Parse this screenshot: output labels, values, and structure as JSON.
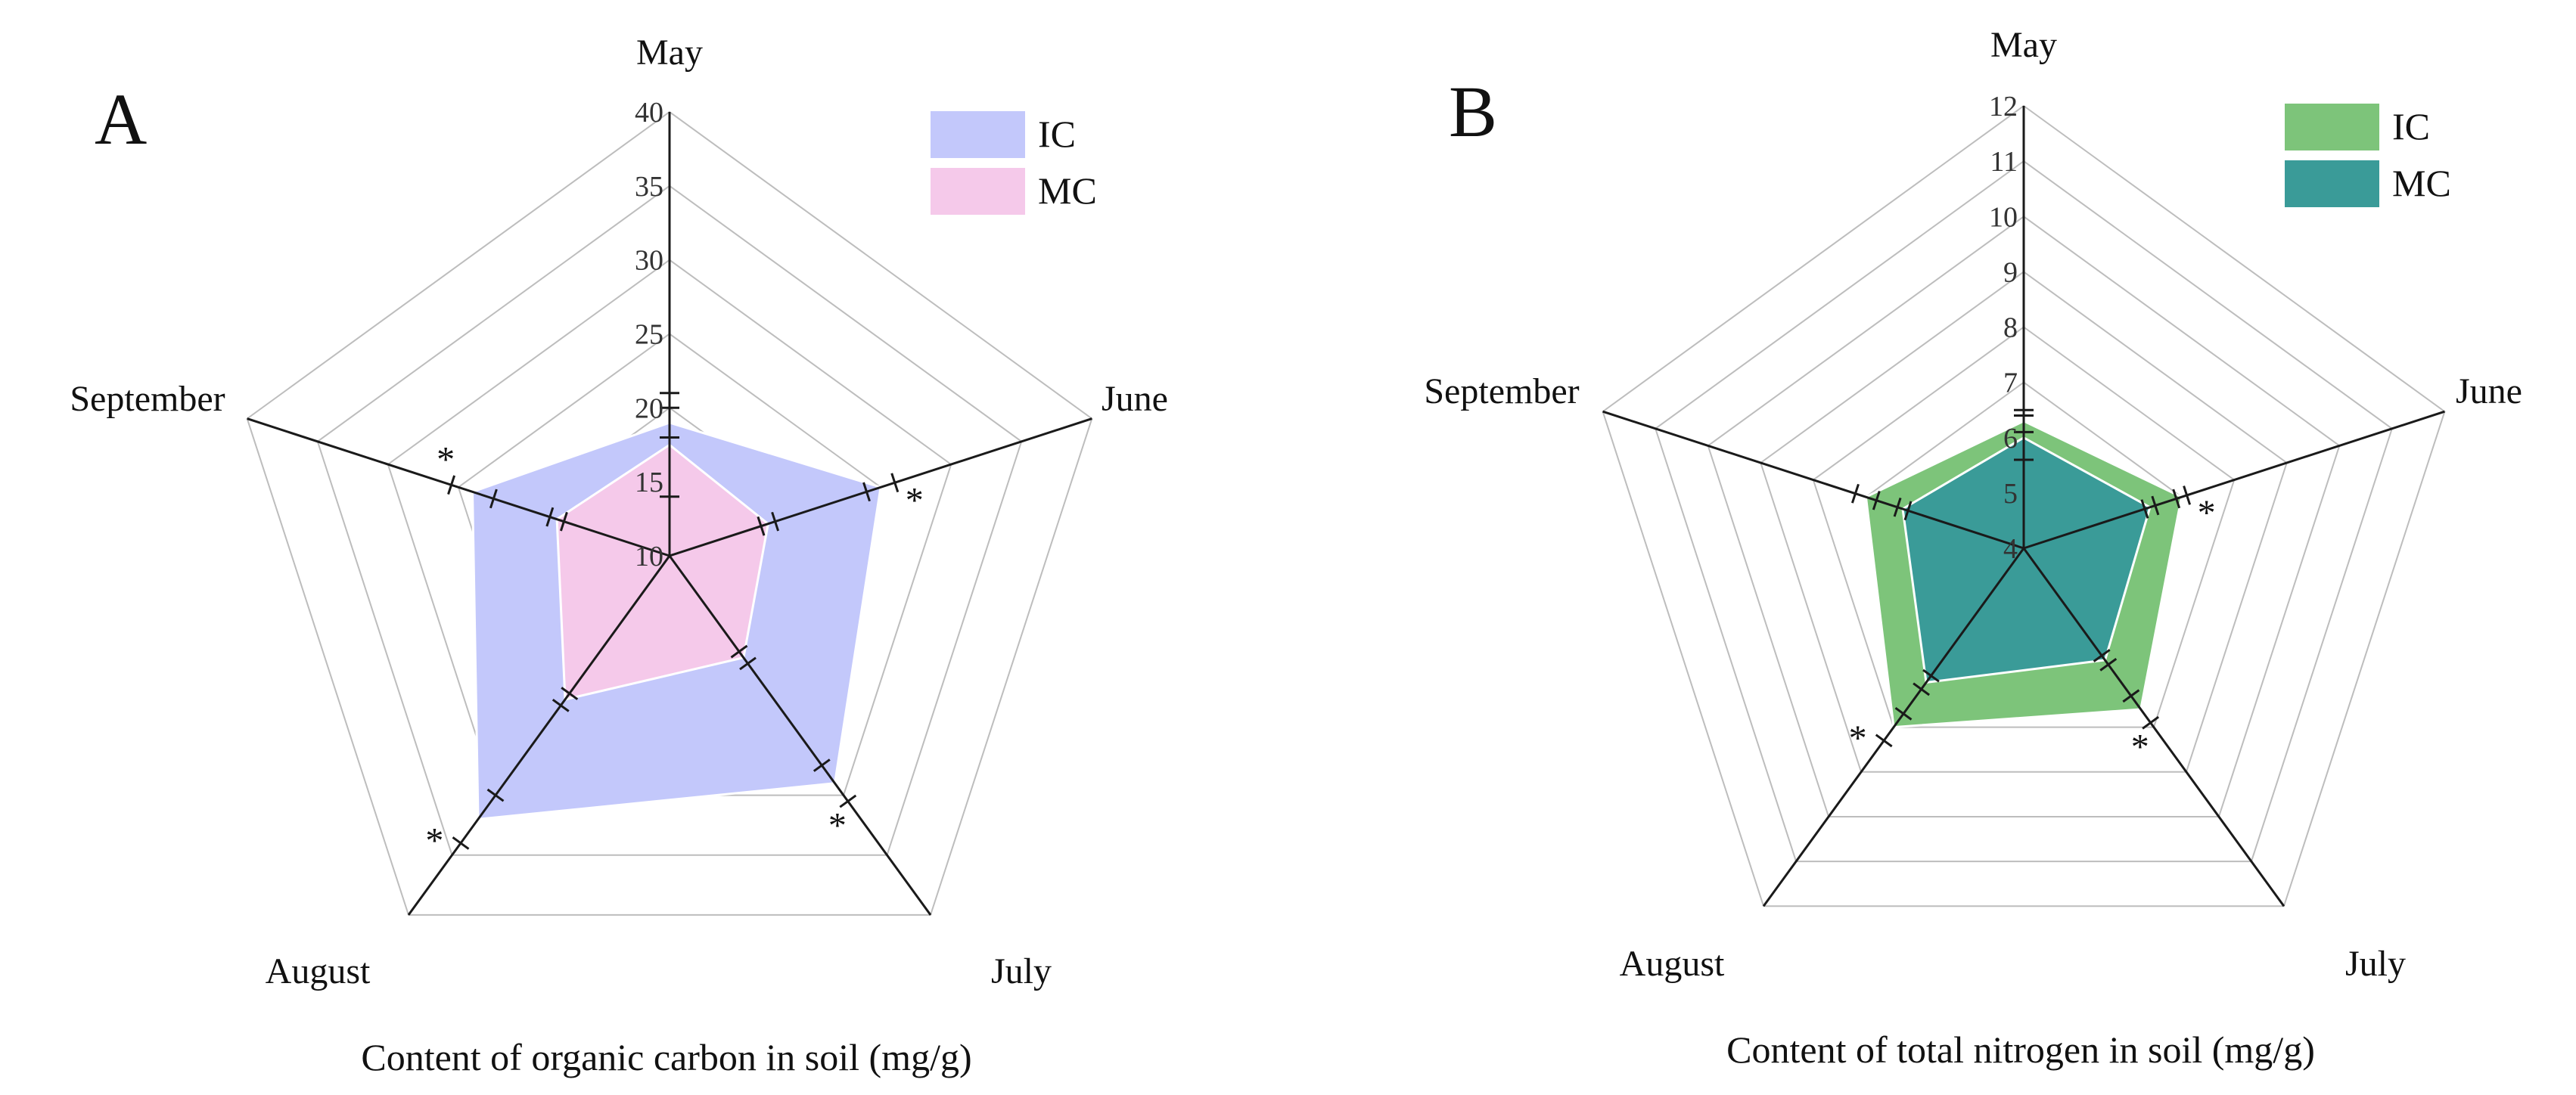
{
  "chart_data": [
    {
      "type": "radar",
      "panel_label": "A",
      "title": "Content of organic carbon in soil (mg/g)",
      "categories": [
        "May",
        "June",
        "July",
        "August",
        "September"
      ],
      "rmin": 10,
      "rmax": 40,
      "ticks": [
        10,
        15,
        20,
        25,
        30,
        35,
        40
      ],
      "legend_placement": "top-right",
      "series": [
        {
          "name": "IC",
          "color": "#c3c8fb",
          "values": [
            19,
            25,
            29,
            32,
            24
          ],
          "err": [
            1.0,
            1.0,
            1.5,
            2.0,
            1.5
          ]
        },
        {
          "name": "MC",
          "color": "#f5c9ea",
          "values": [
            17.5,
            17,
            18.5,
            22,
            18
          ],
          "err": [
            3.5,
            0.5,
            0.5,
            0.5,
            0.5
          ]
        }
      ],
      "significance": [
        "",
        "*",
        "*",
        "*",
        "*"
      ]
    },
    {
      "type": "radar",
      "panel_label": "B",
      "title": "Content of  total nitrogen in soil (mg/g)",
      "categories": [
        "May",
        "June",
        "July",
        "August",
        "September"
      ],
      "rmin": 4,
      "rmax": 12,
      "ticks": [
        4,
        5,
        6,
        7,
        8,
        9,
        10,
        11,
        12
      ],
      "legend_placement": "top-right",
      "series": [
        {
          "name": "IC",
          "color": "#7dc47a",
          "values": [
            6.3,
            7.0,
            7.6,
            8.0,
            7.0
          ],
          "err": [
            0.2,
            0.1,
            0.3,
            0.3,
            0.2
          ]
        },
        {
          "name": "MC",
          "color": "#3a9b98",
          "values": [
            6.0,
            6.4,
            6.5,
            7.0,
            6.3
          ],
          "err": [
            0.4,
            0.1,
            0.1,
            0.15,
            0.1
          ]
        }
      ],
      "significance": [
        "",
        "*",
        "*",
        "*",
        ""
      ]
    }
  ]
}
